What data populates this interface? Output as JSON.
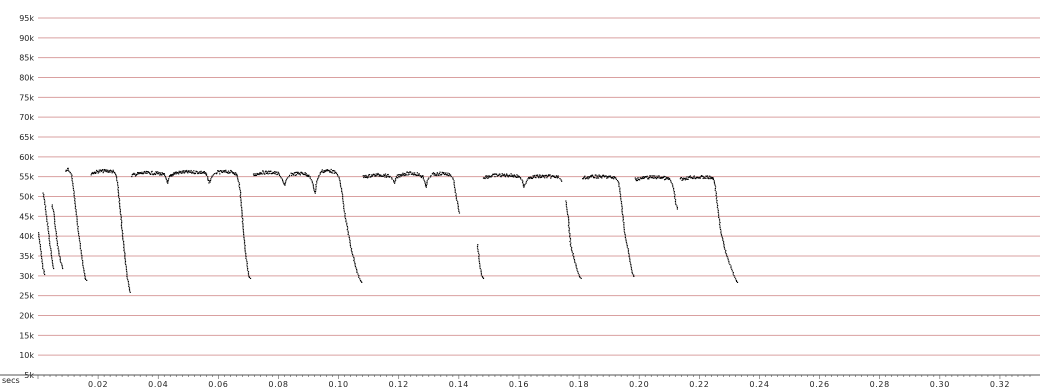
{
  "chart_data": {
    "type": "scatter",
    "title": "",
    "xlabel": "secs",
    "ylabel": "",
    "xlim": [
      0,
      0.33
    ],
    "ylim": [
      5000,
      95000
    ],
    "grid": true,
    "grid_color": "#d9a0a0",
    "point_color": "#000000",
    "y_ticks": [
      {
        "value": 5000,
        "label": "5k"
      },
      {
        "value": 10000,
        "label": "10k"
      },
      {
        "value": 15000,
        "label": "15k"
      },
      {
        "value": 20000,
        "label": "20k"
      },
      {
        "value": 25000,
        "label": "25k"
      },
      {
        "value": 30000,
        "label": "30k"
      },
      {
        "value": 35000,
        "label": "35k"
      },
      {
        "value": 40000,
        "label": "40k"
      },
      {
        "value": 45000,
        "label": "45k"
      },
      {
        "value": 50000,
        "label": "50k"
      },
      {
        "value": 55000,
        "label": "55k"
      },
      {
        "value": 60000,
        "label": "60k"
      },
      {
        "value": 65000,
        "label": "65k"
      },
      {
        "value": 70000,
        "label": "70k"
      },
      {
        "value": 75000,
        "label": "75k"
      },
      {
        "value": 80000,
        "label": "80k"
      },
      {
        "value": 85000,
        "label": "85k"
      },
      {
        "value": 90000,
        "label": "90k"
      },
      {
        "value": 95000,
        "label": "95k"
      }
    ],
    "x_ticks": [
      {
        "value": 0.02,
        "label": "0.02"
      },
      {
        "value": 0.04,
        "label": "0.04"
      },
      {
        "value": 0.06,
        "label": "0.06"
      },
      {
        "value": 0.08,
        "label": "0.08"
      },
      {
        "value": 0.1,
        "label": "0.10"
      },
      {
        "value": 0.12,
        "label": "0.12"
      },
      {
        "value": 0.14,
        "label": "0.14"
      },
      {
        "value": 0.16,
        "label": "0.16"
      },
      {
        "value": 0.18,
        "label": "0.18"
      },
      {
        "value": 0.2,
        "label": "0.20"
      },
      {
        "value": 0.22,
        "label": "0.22"
      },
      {
        "value": 0.24,
        "label": "0.24"
      },
      {
        "value": 0.26,
        "label": "0.26"
      },
      {
        "value": 0.28,
        "label": "0.28"
      },
      {
        "value": 0.3,
        "label": "0.30"
      },
      {
        "value": 0.32,
        "label": "0.32"
      }
    ],
    "minor_tick_step": 0.002,
    "series": [
      {
        "type": "line-segments",
        "segments": [
          [
            [
              0.0,
              41000
            ],
            [
              0.0005,
              38000
            ],
            [
              0.001,
              35000
            ],
            [
              0.0015,
              32000
            ],
            [
              0.002,
              30500
            ]
          ],
          [
            [
              0.0015,
              51000
            ],
            [
              0.002,
              49000
            ],
            [
              0.0025,
              46000
            ],
            [
              0.003,
              43000
            ],
            [
              0.0035,
              40000
            ],
            [
              0.004,
              37000
            ],
            [
              0.0045,
              34000
            ],
            [
              0.005,
              32000
            ]
          ],
          [
            [
              0.0045,
              48000
            ],
            [
              0.005,
              46000
            ],
            [
              0.0055,
              43000
            ],
            [
              0.006,
              40000
            ],
            [
              0.0065,
              37000
            ],
            [
              0.007,
              35000
            ],
            [
              0.0075,
              33500
            ],
            [
              0.008,
              32000
            ]
          ],
          [
            [
              0.009,
              56500
            ],
            [
              0.0095,
              57000
            ],
            [
              0.01,
              56800
            ],
            [
              0.0105,
              56200
            ]
          ],
          [
            [
              0.0105,
              56200
            ],
            [
              0.011,
              55500
            ],
            [
              0.0115,
              53000
            ],
            [
              0.012,
              50000
            ],
            [
              0.0125,
              46000
            ],
            [
              0.013,
              43000
            ],
            [
              0.0135,
              40000
            ],
            [
              0.014,
              37000
            ],
            [
              0.0145,
              34000
            ],
            [
              0.015,
              31500
            ],
            [
              0.0155,
              29500
            ],
            [
              0.016,
              29000
            ]
          ],
          [
            [
              0.0175,
              56000
            ],
            [
              0.02,
              56500
            ],
            [
              0.023,
              56600
            ],
            [
              0.025,
              56400
            ],
            [
              0.0255,
              56000
            ],
            [
              0.026,
              55000
            ],
            [
              0.0265,
              52000
            ],
            [
              0.027,
              48000
            ],
            [
              0.0275,
              44000
            ],
            [
              0.028,
              40000
            ],
            [
              0.0285,
              36500
            ],
            [
              0.029,
              33000
            ],
            [
              0.0295,
              30000
            ],
            [
              0.03,
              27500
            ],
            [
              0.0305,
              26000
            ]
          ],
          [
            [
              0.031,
              55500
            ],
            [
              0.034,
              56000
            ],
            [
              0.037,
              56100
            ],
            [
              0.04,
              56000
            ],
            [
              0.042,
              55500
            ],
            [
              0.0425,
              54500
            ],
            [
              0.043,
              53500
            ],
            [
              0.0435,
              55000
            ],
            [
              0.045,
              56000
            ],
            [
              0.048,
              56300
            ],
            [
              0.052,
              56300
            ],
            [
              0.055,
              56200
            ],
            [
              0.056,
              55500
            ],
            [
              0.0565,
              54000
            ],
            [
              0.057,
              53800
            ],
            [
              0.0575,
              55000
            ],
            [
              0.059,
              56200
            ],
            [
              0.063,
              56400
            ],
            [
              0.065,
              56200
            ],
            [
              0.066,
              55500
            ],
            [
              0.0665,
              54000
            ],
            [
              0.067,
              52000
            ],
            [
              0.0675,
              47000
            ],
            [
              0.068,
              43000
            ],
            [
              0.0685,
              39000
            ],
            [
              0.069,
              35000
            ],
            [
              0.0695,
              32000
            ],
            [
              0.07,
              30000
            ],
            [
              0.0705,
              29500
            ]
          ],
          [
            [
              0.0715,
              55500
            ],
            [
              0.074,
              56200
            ],
            [
              0.078,
              56200
            ],
            [
              0.08,
              55800
            ],
            [
              0.081,
              54500
            ],
            [
              0.0815,
              53500
            ],
            [
              0.082,
              53000
            ],
            [
              0.0825,
              54500
            ],
            [
              0.084,
              55800
            ],
            [
              0.088,
              56000
            ],
            [
              0.09,
              55500
            ],
            [
              0.091,
              54000
            ],
            [
              0.0915,
              52500
            ],
            [
              0.092,
              51000
            ],
            [
              0.0925,
              54000
            ],
            [
              0.094,
              56500
            ],
            [
              0.097,
              56700
            ],
            [
              0.099,
              56000
            ],
            [
              0.1,
              55000
            ],
            [
              0.1005,
              53000
            ],
            [
              0.101,
              51000
            ],
            [
              0.1015,
              48000
            ],
            [
              0.102,
              45000
            ],
            [
              0.103,
              41000
            ],
            [
              0.104,
              37000
            ],
            [
              0.105,
              34000
            ],
            [
              0.106,
              31000
            ],
            [
              0.107,
              29000
            ],
            [
              0.1075,
              28500
            ]
          ],
          [
            [
              0.108,
              55000
            ],
            [
              0.111,
              55500
            ],
            [
              0.114,
              55600
            ],
            [
              0.117,
              55200
            ],
            [
              0.118,
              54200
            ],
            [
              0.1185,
              53500
            ],
            [
              0.119,
              55000
            ],
            [
              0.121,
              55800
            ],
            [
              0.124,
              56000
            ],
            [
              0.126,
              55800
            ],
            [
              0.128,
              55000
            ],
            [
              0.1285,
              53500
            ],
            [
              0.129,
              52500
            ],
            [
              0.1295,
              54500
            ],
            [
              0.131,
              55700
            ],
            [
              0.135,
              56000
            ],
            [
              0.137,
              55500
            ],
            [
              0.138,
              54500
            ],
            [
              0.1385,
              52000
            ],
            [
              0.139,
              50000
            ],
            [
              0.1395,
              48000
            ],
            [
              0.14,
              46000
            ]
          ],
          [
            [
              0.146,
              38000
            ],
            [
              0.1465,
              35000
            ],
            [
              0.147,
              32000
            ],
            [
              0.1475,
              30000
            ],
            [
              0.148,
              29500
            ]
          ],
          [
            [
              0.148,
              55000
            ],
            [
              0.152,
              55500
            ],
            [
              0.157,
              55500
            ],
            [
              0.16,
              55200
            ],
            [
              0.161,
              54000
            ],
            [
              0.1615,
              52500
            ],
            [
              0.162,
              53500
            ],
            [
              0.163,
              55000
            ],
            [
              0.166,
              55200
            ],
            [
              0.17,
              55200
            ],
            [
              0.173,
              55000
            ],
            [
              0.174,
              54000
            ]
          ],
          [
            [
              0.1755,
              49000
            ],
            [
              0.176,
              46000
            ],
            [
              0.1765,
              42000
            ],
            [
              0.177,
              38000
            ],
            [
              0.178,
              35000
            ],
            [
              0.179,
              32000
            ],
            [
              0.18,
              30000
            ],
            [
              0.1805,
              29500
            ]
          ],
          [
            [
              0.181,
              54800
            ],
            [
              0.185,
              55200
            ],
            [
              0.189,
              55100
            ],
            [
              0.192,
              54800
            ],
            [
              0.193,
              53500
            ],
            [
              0.1935,
              51000
            ],
            [
              0.194,
              48000
            ],
            [
              0.1945,
              44000
            ],
            [
              0.195,
              41000
            ],
            [
              0.1955,
              39000
            ],
            [
              0.196,
              37000
            ],
            [
              0.1965,
              35000
            ],
            [
              0.197,
              33000
            ],
            [
              0.1975,
              31000
            ],
            [
              0.198,
              30000
            ]
          ],
          [
            [
              0.1985,
              54500
            ],
            [
              0.203,
              55000
            ],
            [
              0.207,
              55000
            ],
            [
              0.21,
              54500
            ],
            [
              0.211,
              53000
            ],
            [
              0.2115,
              51000
            ],
            [
              0.212,
              48500
            ],
            [
              0.2125,
              47000
            ]
          ],
          [
            [
              0.2135,
              54500
            ],
            [
              0.217,
              55000
            ],
            [
              0.222,
              55000
            ],
            [
              0.2245,
              54800
            ],
            [
              0.225,
              53000
            ],
            [
              0.2255,
              50000
            ],
            [
              0.226,
              47000
            ],
            [
              0.2265,
              44000
            ],
            [
              0.227,
              41000
            ],
            [
              0.228,
              38000
            ],
            [
              0.229,
              35000
            ],
            [
              0.23,
              33000
            ],
            [
              0.231,
              31000
            ],
            [
              0.232,
              29000
            ],
            [
              0.2325,
              28500
            ]
          ]
        ]
      }
    ]
  }
}
